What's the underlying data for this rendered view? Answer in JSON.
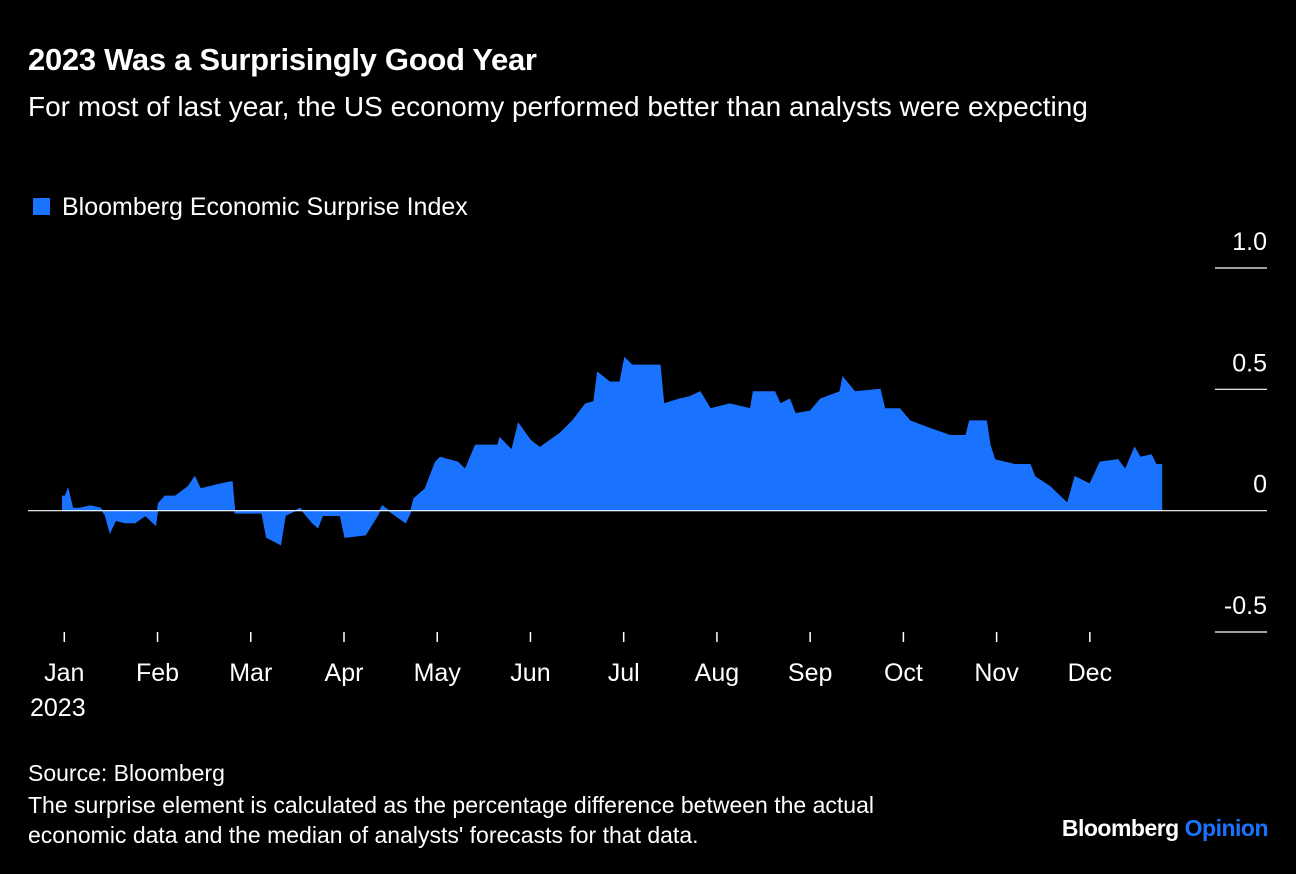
{
  "chart_data": {
    "type": "area",
    "title": "2023 Was a Surprisingly Good Year",
    "subtitle": "For most of last year, the US economy performed better than analysts were expecting",
    "x_sublabel": "2023",
    "source": "Source: Bloomberg",
    "note": "The surprise element is calculated as the percentage difference between the actual economic data and the median of analysts' forecasts for that data.",
    "brand": "Bloomberg",
    "brand_product": "Opinion",
    "xlim": [
      0.6,
      13.9
    ],
    "xticks": [
      {
        "value": 1,
        "label": "Jan"
      },
      {
        "value": 2,
        "label": "Feb"
      },
      {
        "value": 3,
        "label": "Mar"
      },
      {
        "value": 4,
        "label": "Apr"
      },
      {
        "value": 5,
        "label": "May"
      },
      {
        "value": 6,
        "label": "Jun"
      },
      {
        "value": 7,
        "label": "Jul"
      },
      {
        "value": 8,
        "label": "Aug"
      },
      {
        "value": 9,
        "label": "Sep"
      },
      {
        "value": 10,
        "label": "Oct"
      },
      {
        "value": 11,
        "label": "Nov"
      },
      {
        "value": 12,
        "label": "Dec"
      }
    ],
    "ylim": [
      -0.5,
      1.0
    ],
    "yticks": [
      {
        "value": 1,
        "label": "1.0"
      },
      0.5,
      0,
      -0.5
    ],
    "x": [
      0.98,
      1.01,
      1.04,
      1.09,
      1.17,
      1.28,
      1.39,
      1.44,
      1.49,
      1.55,
      1.65,
      1.76,
      1.87,
      1.98,
      2.01,
      2.08,
      2.19,
      2.33,
      2.4,
      2.46,
      2.67,
      2.8,
      2.83,
      3.05,
      3.12,
      3.17,
      3.32,
      3.37,
      3.53,
      3.66,
      3.72,
      3.77,
      3.96,
      4.01,
      4.23,
      4.36,
      4.41,
      4.55,
      4.66,
      4.71,
      4.75,
      4.87,
      4.98,
      5.03,
      5.22,
      5.3,
      5.41,
      5.65,
      5.67,
      5.8,
      5.87,
      6.0,
      6.1,
      6.32,
      6.45,
      6.59,
      6.68,
      6.72,
      6.85,
      6.96,
      7.01,
      7.09,
      7.39,
      7.43,
      7.6,
      7.71,
      7.82,
      7.93,
      8.14,
      8.36,
      8.39,
      8.62,
      8.68,
      8.78,
      8.84,
      9.0,
      9.11,
      9.32,
      9.35,
      9.48,
      9.75,
      9.8,
      9.96,
      10.07,
      10.28,
      10.5,
      10.67,
      10.71,
      10.89,
      10.93,
      10.98,
      11.2,
      11.36,
      11.41,
      11.57,
      11.76,
      11.84,
      12.0,
      12.11,
      12.3,
      12.38,
      12.48,
      12.54,
      12.66,
      12.71,
      12.77
    ],
    "series": [
      {
        "name": "Bloomberg Economic Surprise Index",
        "color": "#1a73ff",
        "values": [
          0.06,
          0.06,
          0.09,
          0.01,
          0.01,
          0.02,
          0.01,
          -0.02,
          -0.09,
          -0.04,
          -0.05,
          -0.05,
          -0.02,
          -0.06,
          0.03,
          0.06,
          0.06,
          0.1,
          0.14,
          0.09,
          0.11,
          0.12,
          -0.01,
          -0.01,
          -0.01,
          -0.11,
          -0.14,
          -0.02,
          0.01,
          -0.05,
          -0.07,
          -0.02,
          -0.02,
          -0.11,
          -0.1,
          -0.02,
          0.02,
          -0.02,
          -0.05,
          -0.01,
          0.05,
          0.09,
          0.2,
          0.22,
          0.2,
          0.17,
          0.27,
          0.27,
          0.3,
          0.25,
          0.36,
          0.29,
          0.26,
          0.32,
          0.37,
          0.44,
          0.45,
          0.57,
          0.53,
          0.53,
          0.63,
          0.6,
          0.6,
          0.44,
          0.46,
          0.47,
          0.49,
          0.42,
          0.44,
          0.42,
          0.49,
          0.49,
          0.44,
          0.46,
          0.4,
          0.41,
          0.46,
          0.49,
          0.55,
          0.49,
          0.5,
          0.42,
          0.42,
          0.37,
          0.34,
          0.31,
          0.31,
          0.37,
          0.37,
          0.27,
          0.21,
          0.19,
          0.19,
          0.14,
          0.1,
          0.03,
          0.14,
          0.11,
          0.2,
          0.21,
          0.17,
          0.26,
          0.22,
          0.23,
          0.19,
          0.19
        ]
      }
    ]
  }
}
